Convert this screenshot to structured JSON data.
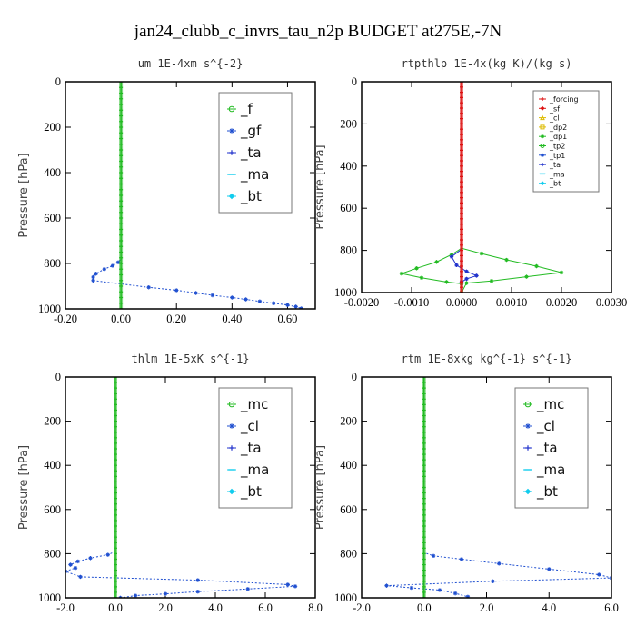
{
  "figure_title": "jan24_clubb_c_invrs_tau_n2p  BUDGET at275E,-7N",
  "colors": {
    "green": "#22bb22",
    "blue_dotted": "#1f4fd0",
    "blue_dark": "#2233cc",
    "cyan": "#11ccee",
    "red": "#dd1111",
    "purple": "#9966aa",
    "yellow": "#ddbb00"
  },
  "chart_data": [
    {
      "type": "line",
      "title": "um   1E-4xm s^{-2}",
      "ylabel": "Pressure [hPa]",
      "xlim": [
        -0.2,
        0.7
      ],
      "ylim": [
        1000,
        0
      ],
      "xticks": [
        "-0.20",
        "0.00",
        "0.20",
        "0.40",
        "0.60"
      ],
      "xtick_values": [
        -0.2,
        0.0,
        0.2,
        0.4,
        0.6
      ],
      "yticks": [
        "0",
        "200",
        "400",
        "600",
        "800",
        "1000"
      ],
      "ytick_values": [
        0,
        200,
        400,
        600,
        800,
        1000
      ],
      "legend_position": "top-right",
      "legend_size": "large",
      "legend": [
        {
          "label": "_f",
          "color": "#22bb22",
          "marker": "circle"
        },
        {
          "label": "_gf",
          "color": "#1f4fd0",
          "marker": "star"
        },
        {
          "label": "_ta",
          "color": "#2233cc",
          "marker": "plus"
        },
        {
          "label": "_ma",
          "color": "#11ccee",
          "marker": "dash"
        },
        {
          "label": "_bt",
          "color": "#11ccee",
          "marker": "diamond"
        }
      ],
      "series": [
        {
          "name": "_gf",
          "color": "#1f4fd0",
          "style": "dotted",
          "x": [
            0,
            0,
            -0.01,
            -0.03,
            -0.06,
            -0.09,
            -0.1,
            -0.1,
            0.1,
            0.2,
            0.27,
            0.33,
            0.4,
            0.45,
            0.5,
            0.55,
            0.6,
            0.63,
            0.65
          ],
          "y": [
            0,
            780,
            795,
            810,
            825,
            845,
            860,
            875,
            905,
            918,
            930,
            940,
            950,
            958,
            967,
            975,
            983,
            990,
            998
          ]
        },
        {
          "name": "_f",
          "color": "#22bb22",
          "style": "solid",
          "x": "constant",
          "value": 0.0
        }
      ]
    },
    {
      "type": "line",
      "title": "rtpthlp  1E-4x(kg K)/(kg s)",
      "ylabel": "Pressure [hPa]",
      "xlim": [
        -0.002,
        0.003
      ],
      "ylim": [
        1000,
        0
      ],
      "xticks": [
        "-0.0020",
        "-0.0010",
        "0.0000",
        "0.0010",
        "0.0020",
        "0.0030"
      ],
      "xtick_values": [
        -0.002,
        -0.001,
        0.0,
        0.001,
        0.002,
        0.003
      ],
      "yticks": [
        "0",
        "200",
        "400",
        "600",
        "800",
        "1000"
      ],
      "ytick_values": [
        0,
        200,
        400,
        600,
        800,
        1000
      ],
      "legend_position": "top-right",
      "legend_size": "small",
      "legend": [
        {
          "label": "_forcing",
          "color": "#dd1111",
          "marker": "plus"
        },
        {
          "label": "_sf",
          "color": "#dd1111",
          "marker": "diamond"
        },
        {
          "label": "_cl",
          "color": "#ddbb00",
          "marker": "triangle"
        },
        {
          "label": "_dp2",
          "color": "#ddbb00",
          "marker": "square"
        },
        {
          "label": "_dp1",
          "color": "#22bb22",
          "marker": "star"
        },
        {
          "label": "_tp2",
          "color": "#22bb22",
          "marker": "circle"
        },
        {
          "label": "_tp1",
          "color": "#1f4fd0",
          "marker": "star"
        },
        {
          "label": "_ta",
          "color": "#2233cc",
          "marker": "plus"
        },
        {
          "label": "_ma",
          "color": "#11ccee",
          "marker": "dash"
        },
        {
          "label": "_bt",
          "color": "#11ccee",
          "marker": "diamond"
        }
      ],
      "series": [
        {
          "name": "_tp2",
          "color": "#22bb22",
          "style": "solid",
          "x": [
            0,
            0,
            -0.0002,
            -0.0005,
            -0.0009,
            -0.0012,
            -0.0008,
            -0.0003,
            0,
            0
          ],
          "y": [
            0,
            790,
            820,
            855,
            885,
            910,
            930,
            950,
            958,
            1000
          ]
        },
        {
          "name": "_dp1",
          "color": "#22bb22",
          "style": "solid",
          "x": [
            0,
            0,
            0.0004,
            0.0009,
            0.0015,
            0.002,
            0.0013,
            0.0006,
            0.0001,
            0
          ],
          "y": [
            0,
            790,
            815,
            845,
            875,
            905,
            925,
            945,
            955,
            1000
          ]
        },
        {
          "name": "_ta",
          "color": "#2233cc",
          "style": "solid",
          "x": [
            0,
            0,
            -0.0002,
            -0.0001,
            0.0001,
            0.0003,
            0.0001,
            0,
            0
          ],
          "y": [
            0,
            795,
            830,
            870,
            900,
            920,
            935,
            950,
            1000
          ]
        },
        {
          "name": "_forcing",
          "color": "#dd1111",
          "style": "solid",
          "x": "constant",
          "value": 0.0
        }
      ]
    },
    {
      "type": "line",
      "title": "thlm   1E-5xK s^{-1}",
      "ylabel": "Pressure [hPa]",
      "xlim": [
        -2.0,
        8.0
      ],
      "ylim": [
        1000,
        0
      ],
      "xticks": [
        "-2.0",
        "0.0",
        "2.0",
        "4.0",
        "6.0",
        "8.0"
      ],
      "xtick_values": [
        -2,
        0,
        2,
        4,
        6,
        8
      ],
      "yticks": [
        "0",
        "200",
        "400",
        "600",
        "800",
        "1000"
      ],
      "ytick_values": [
        0,
        200,
        400,
        600,
        800,
        1000
      ],
      "legend_position": "top-right",
      "legend_size": "large",
      "legend": [
        {
          "label": "_mc",
          "color": "#22bb22",
          "marker": "circle"
        },
        {
          "label": "_cl",
          "color": "#1f4fd0",
          "marker": "star"
        },
        {
          "label": "_ta",
          "color": "#2233cc",
          "marker": "plus"
        },
        {
          "label": "_ma",
          "color": "#11ccee",
          "marker": "dash"
        },
        {
          "label": "_bt",
          "color": "#11ccee",
          "marker": "diamond"
        }
      ],
      "series": [
        {
          "name": "_cl",
          "color": "#1f4fd0",
          "style": "dotted",
          "x": [
            0,
            0,
            -0.3,
            -1.0,
            -1.5,
            -1.8,
            -1.6,
            -2.0,
            -1.4,
            3.3,
            6.9,
            7.2,
            5.3,
            3.3,
            2.0,
            0.8,
            0.2
          ],
          "y": [
            0,
            790,
            805,
            820,
            835,
            850,
            865,
            880,
            905,
            920,
            940,
            948,
            960,
            972,
            982,
            990,
            1000
          ]
        },
        {
          "name": "_mc",
          "color": "#22bb22",
          "style": "solid",
          "x": "constant",
          "value": 0.0
        }
      ]
    },
    {
      "type": "line",
      "title": "rtm   1E-8xkg kg^{-1} s^{-1}",
      "ylabel": "Pressure [hPa]",
      "xlim": [
        -2.0,
        6.0
      ],
      "ylim": [
        1000,
        0
      ],
      "xticks": [
        "-2.0",
        "0.0",
        "2.0",
        "4.0",
        "6.0"
      ],
      "xtick_values": [
        -2,
        0,
        2,
        4,
        6
      ],
      "yticks": [
        "0",
        "200",
        "400",
        "600",
        "800",
        "1000"
      ],
      "ytick_values": [
        0,
        200,
        400,
        600,
        800,
        1000
      ],
      "legend_position": "top-right",
      "legend_size": "large",
      "legend": [
        {
          "label": "_mc",
          "color": "#22bb22",
          "marker": "circle"
        },
        {
          "label": "_cl",
          "color": "#1f4fd0",
          "marker": "star"
        },
        {
          "label": "_ta",
          "color": "#2233cc",
          "marker": "plus"
        },
        {
          "label": "_ma",
          "color": "#11ccee",
          "marker": "dash"
        },
        {
          "label": "_bt",
          "color": "#11ccee",
          "marker": "diamond"
        }
      ],
      "series": [
        {
          "name": "_cl",
          "color": "#1f4fd0",
          "style": "dotted",
          "x": [
            0,
            0,
            0.3,
            1.2,
            2.4,
            4.0,
            5.6,
            6.0,
            2.2,
            -1.2,
            -0.4,
            0.5,
            1.0,
            1.4
          ],
          "y": [
            0,
            795,
            810,
            825,
            845,
            870,
            895,
            910,
            925,
            945,
            955,
            965,
            980,
            995
          ]
        },
        {
          "name": "_mc",
          "color": "#22bb22",
          "style": "solid",
          "x": "constant",
          "value": 0.0
        }
      ]
    }
  ]
}
